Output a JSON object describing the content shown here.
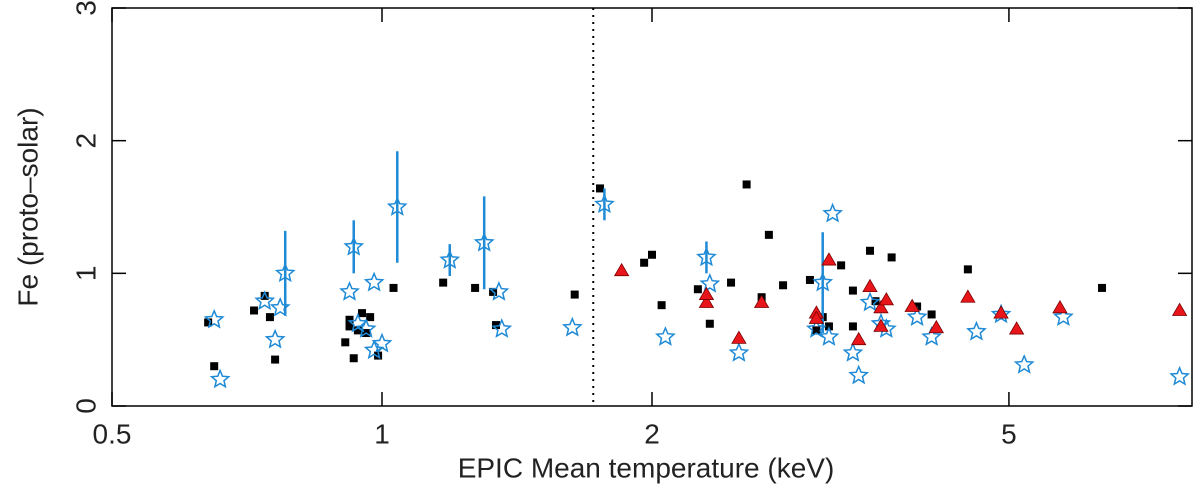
{
  "chart_data": {
    "type": "scatter",
    "x_label": "EPIC Mean temperature (keV)",
    "y_label": "Fe (proto–solar)",
    "xlim": [
      0.5,
      8
    ],
    "ylim": [
      0,
      3
    ],
    "xscale": "log",
    "xticks": [
      0.5,
      1,
      2,
      5
    ],
    "yticks": [
      0,
      1,
      2,
      3
    ],
    "vline": 1.72,
    "series": [
      {
        "name": "black",
        "marker": "square",
        "color": "#000000",
        "x": [
          0.64,
          0.65,
          0.72,
          0.74,
          0.75,
          0.76,
          0.91,
          0.92,
          0.92,
          0.93,
          0.94,
          0.95,
          0.96,
          0.97,
          0.99,
          1.03,
          1.17,
          1.27,
          1.33,
          1.34,
          1.64,
          1.75,
          1.96,
          2.0,
          2.05,
          2.25,
          2.32,
          2.45,
          2.55,
          2.65,
          2.7,
          2.8,
          3.0,
          3.05,
          3.1,
          3.15,
          3.25,
          3.35,
          3.35,
          3.5,
          3.55,
          3.7,
          3.95,
          4.1,
          4.5,
          6.35
        ],
        "values": [
          0.63,
          0.3,
          0.72,
          0.83,
          0.67,
          0.35,
          0.48,
          0.65,
          0.6,
          0.36,
          0.57,
          0.7,
          0.55,
          0.67,
          0.38,
          0.89,
          0.93,
          0.89,
          0.86,
          0.61,
          0.84,
          1.64,
          1.08,
          1.14,
          0.76,
          0.88,
          0.62,
          0.93,
          1.67,
          0.82,
          1.29,
          0.91,
          0.95,
          0.57,
          0.67,
          0.6,
          1.06,
          0.6,
          0.87,
          1.17,
          0.79,
          1.12,
          0.75,
          0.69,
          1.03,
          0.89
        ]
      },
      {
        "name": "blue",
        "marker": "star",
        "color": "#1f8ad6",
        "x": [
          0.65,
          0.66,
          0.74,
          0.76,
          0.77,
          0.78,
          0.92,
          0.93,
          0.94,
          0.96,
          0.98,
          0.98,
          1.0,
          1.04,
          1.19,
          1.3,
          1.35,
          1.36,
          1.63,
          1.77,
          2.07,
          2.3,
          2.32,
          2.5,
          3.05,
          3.1,
          3.15,
          3.18,
          3.35,
          3.4,
          3.5,
          3.6,
          3.65,
          3.95,
          4.1,
          4.6,
          4.9,
          5.2,
          5.75,
          7.75
        ],
        "values": [
          0.65,
          0.2,
          0.79,
          0.5,
          0.74,
          1.0,
          0.86,
          1.2,
          0.62,
          0.58,
          0.93,
          0.42,
          0.47,
          1.5,
          1.1,
          1.23,
          0.86,
          0.58,
          0.59,
          1.52,
          0.52,
          1.12,
          0.92,
          0.4,
          0.58,
          0.93,
          0.52,
          1.45,
          0.4,
          0.23,
          0.78,
          0.62,
          0.58,
          0.67,
          0.52,
          0.56,
          0.69,
          0.31,
          0.67,
          0.22
        ],
        "yerr": [
          null,
          null,
          null,
          null,
          null,
          0.32,
          null,
          0.2,
          null,
          null,
          null,
          null,
          null,
          0.42,
          0.12,
          0.35,
          null,
          null,
          null,
          0.12,
          null,
          0.12,
          null,
          null,
          null,
          0.38,
          null,
          null,
          null,
          null,
          null,
          null,
          null,
          null,
          null,
          null,
          null,
          null,
          null,
          null
        ]
      },
      {
        "name": "red",
        "marker": "triangle",
        "color": "#e8161b",
        "x": [
          1.85,
          2.3,
          2.3,
          2.5,
          2.65,
          3.05,
          3.05,
          3.15,
          3.4,
          3.5,
          3.6,
          3.6,
          3.65,
          3.9,
          4.15,
          4.5,
          4.9,
          5.1,
          5.7,
          7.75
        ],
        "values": [
          1.02,
          0.78,
          0.84,
          0.51,
          0.78,
          0.7,
          0.66,
          1.1,
          0.5,
          0.9,
          0.74,
          0.6,
          0.8,
          0.75,
          0.59,
          0.82,
          0.7,
          0.58,
          0.74,
          0.72
        ]
      }
    ]
  }
}
